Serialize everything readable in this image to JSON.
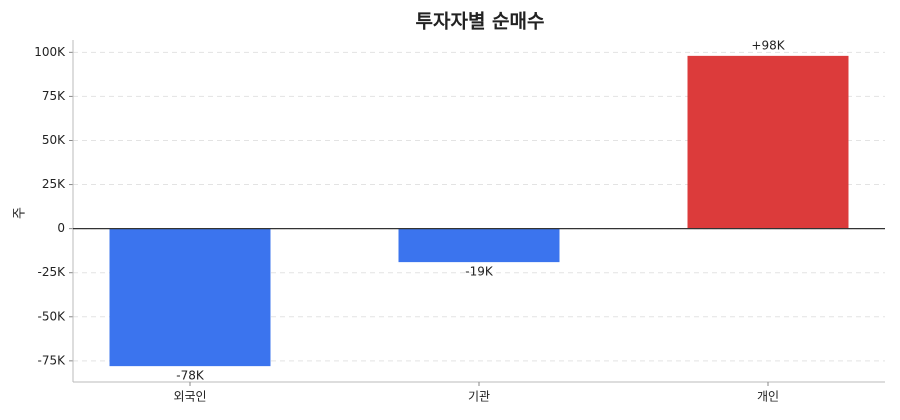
{
  "chart_data": {
    "type": "bar",
    "title": "투자자별 순매수",
    "y_label": "주",
    "categories": [
      "외국인",
      "기관",
      "개인"
    ],
    "values": [
      -78000,
      -19000,
      98000
    ],
    "value_labels": [
      "-78K",
      "-19K",
      "+98K"
    ],
    "colors": [
      "#3b74ee",
      "#3b74ee",
      "#dc3b3b"
    ],
    "ylim": [
      -87000,
      107000
    ],
    "yticks": [
      {
        "value": -75000,
        "label": "-75K"
      },
      {
        "value": -50000,
        "label": "-50K"
      },
      {
        "value": -25000,
        "label": "-25K"
      },
      0,
      {
        "value": 25000,
        "label": "25K"
      },
      {
        "value": 50000,
        "label": "50K"
      },
      {
        "value": 75000,
        "label": "75K"
      },
      {
        "value": 100000,
        "label": "100K"
      }
    ],
    "grid": true
  }
}
